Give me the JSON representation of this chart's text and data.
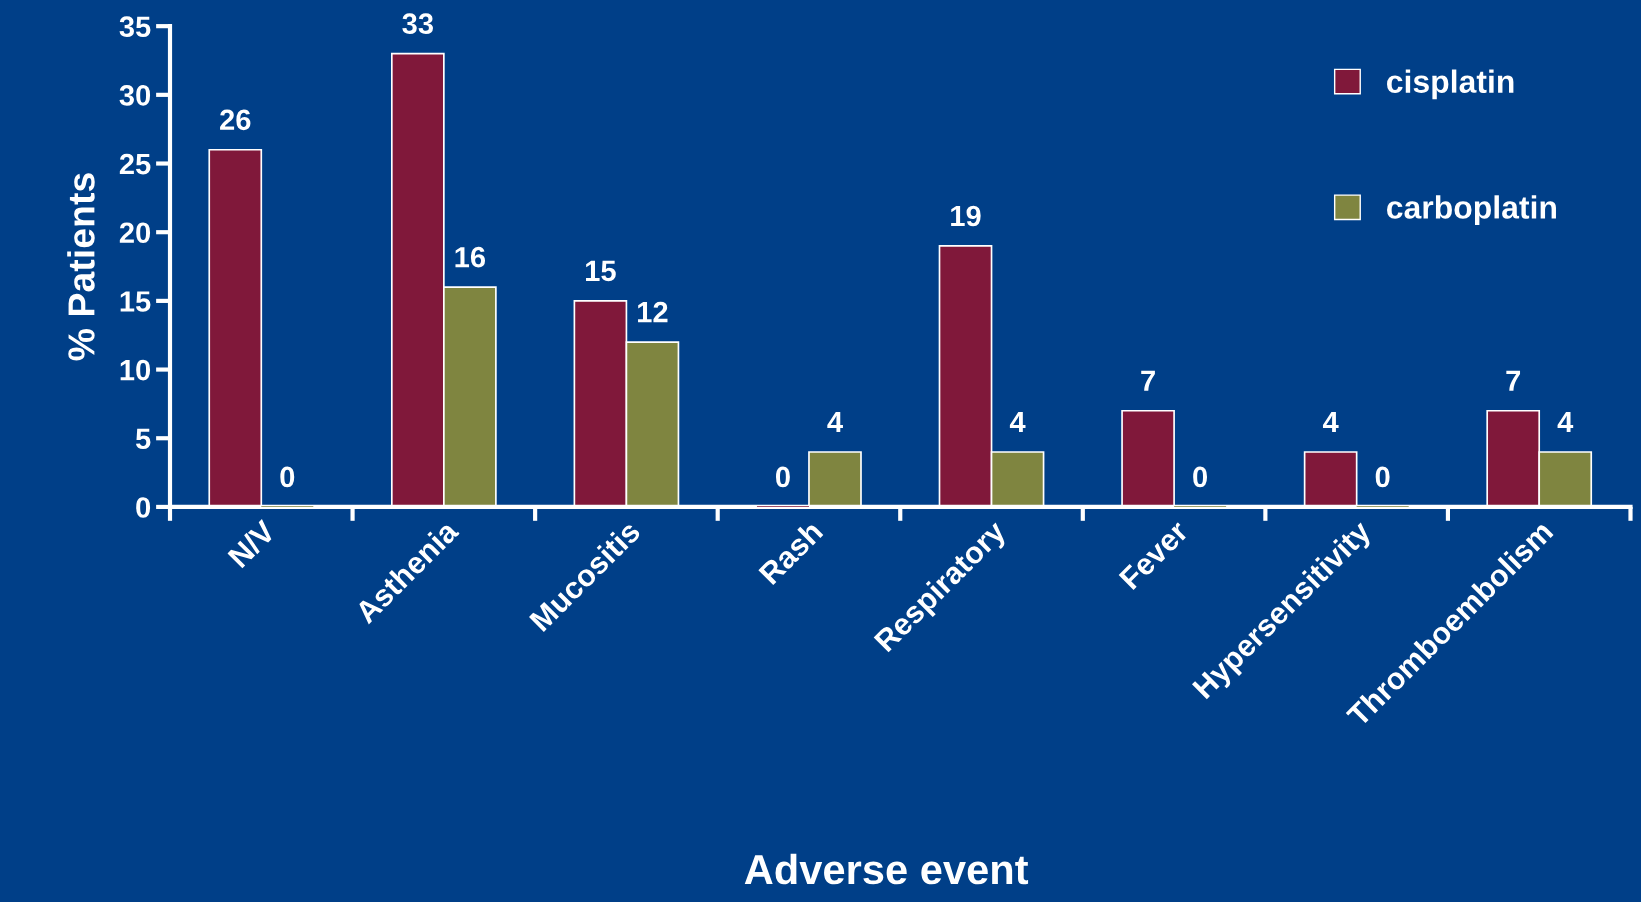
{
  "chart_data": {
    "type": "bar",
    "xlabel": "Adverse event",
    "ylabel": "% Patients",
    "categories": [
      "N/V",
      "Asthenia",
      "Mucositis",
      "Rash",
      "Respiratory",
      "Fever",
      "Hypersensitivity",
      "Thromboembolism"
    ],
    "series": [
      {
        "name": "cisplatin",
        "color": "#80183a",
        "values": [
          26,
          33,
          15,
          0,
          19,
          7,
          4,
          7
        ]
      },
      {
        "name": "carboplatin",
        "color": "#7f8540",
        "values": [
          0,
          16,
          12,
          4,
          4,
          0,
          0,
          4
        ]
      }
    ],
    "ylim": [
      0,
      35
    ],
    "yticks": [
      0,
      5,
      10,
      15,
      20,
      25,
      30,
      35
    ],
    "data_labels": true,
    "legend": "top right",
    "grid": false
  }
}
